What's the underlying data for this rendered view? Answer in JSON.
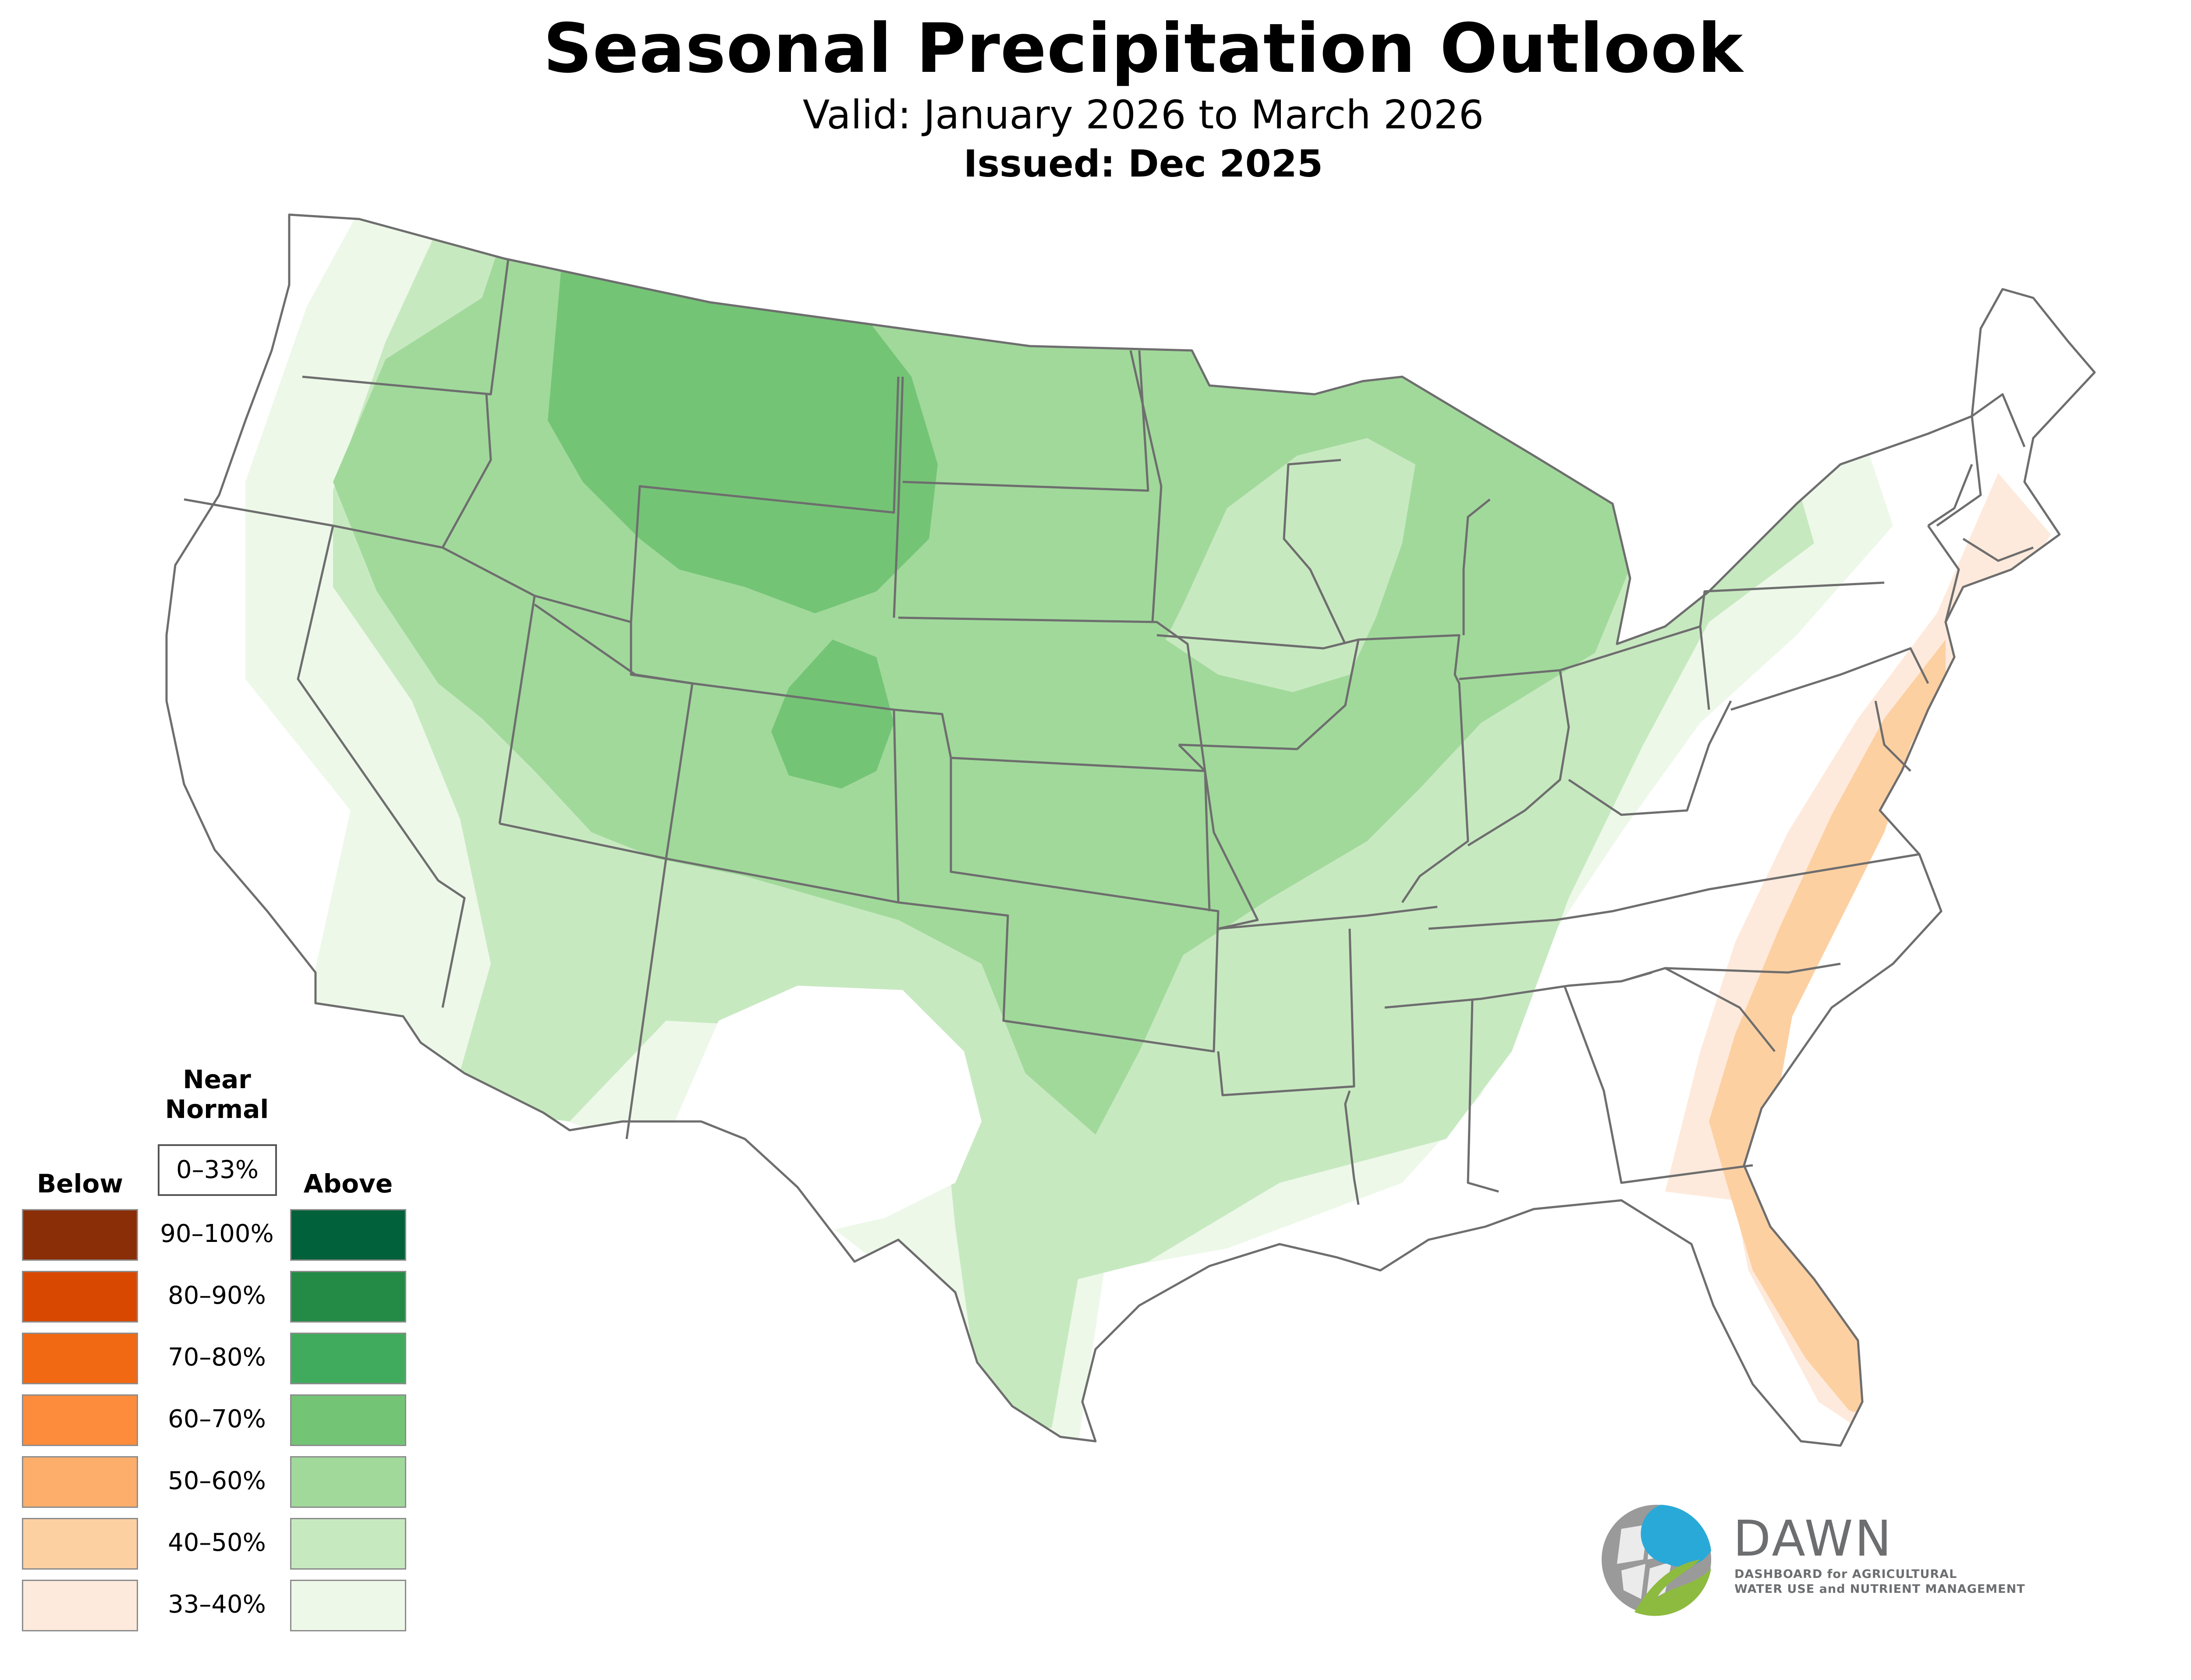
{
  "header": {
    "title": "Seasonal Precipitation Outlook",
    "valid": "Valid: January 2026 to March 2026",
    "issued": "Issued: Dec 2025"
  },
  "legend": {
    "near_normal_title": "Near\nNormal",
    "near_normal_range": "0–33%",
    "below_title": "Below",
    "above_title": "Above",
    "categories": [
      {
        "range": "90–100%",
        "below_color": "#8a2e08",
        "above_color": "#00613a"
      },
      {
        "range": "80–90%",
        "below_color": "#d94801",
        "above_color": "#238b45"
      },
      {
        "range": "70–80%",
        "below_color": "#f16913",
        "above_color": "#41ab5d"
      },
      {
        "range": "60–70%",
        "below_color": "#fd8d3c",
        "above_color": "#74c476"
      },
      {
        "range": "50–60%",
        "below_color": "#fdae6b",
        "above_color": "#a1d99b"
      },
      {
        "range": "40–50%",
        "below_color": "#fdd0a2",
        "above_color": "#c7e9c0"
      },
      {
        "range": "33–40%",
        "below_color": "#feeadc",
        "above_color": "#edf8e9"
      }
    ]
  },
  "map": {
    "region": "Contiguous United States",
    "state_border_color": "#6e6e6e"
  },
  "logo": {
    "name": "DAWN",
    "tagline_line1": "DASHBOARD for AGRICULTURAL",
    "tagline_line2": "WATER USE and NUTRIENT MANAGEMENT"
  }
}
